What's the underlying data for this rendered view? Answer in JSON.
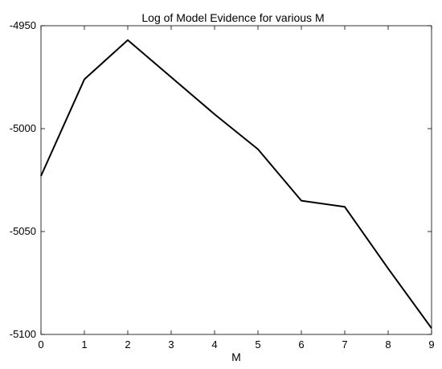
{
  "chart_data": {
    "type": "line",
    "title": "Log of Model Evidence for various M",
    "xlabel": "M",
    "ylabel": "",
    "x": [
      0,
      1,
      2,
      3,
      4,
      5,
      6,
      7,
      8,
      9
    ],
    "series": [
      {
        "values": [
          -5023,
          -4976,
          -4957,
          -4975,
          -4993,
          -5010,
          -5035,
          -5038,
          -5068,
          -5097
        ]
      }
    ],
    "xlim": [
      0,
      9
    ],
    "ylim": [
      -5100,
      -4950
    ],
    "xticks": [
      "0",
      "1",
      "2",
      "3",
      "4",
      "5",
      "6",
      "7",
      "8",
      "9"
    ],
    "yticks": [
      "-4950",
      "-5000",
      "-5050",
      "-5100"
    ],
    "ytick_values": [
      -4950,
      -5000,
      -5050,
      -5100
    ],
    "grid": false,
    "line_color": "#000000"
  }
}
